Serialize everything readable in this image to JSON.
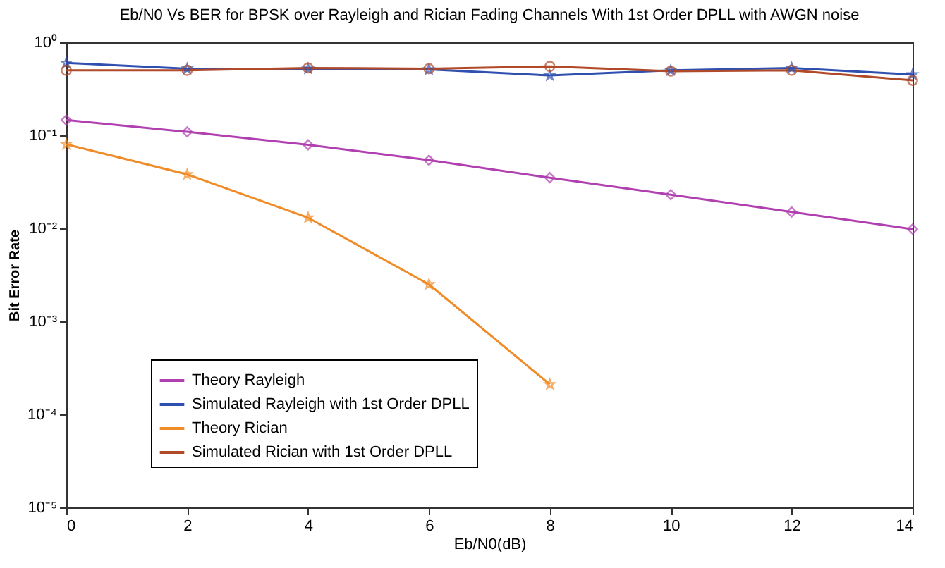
{
  "chart_data": {
    "type": "line",
    "title": "Eb/N0 Vs BER for BPSK over Rayleigh and Rician Fading Channels With 1st Order DPLL with AWGN noise",
    "xlabel": "Eb/N0(dB)",
    "ylabel": "Bit Error Rate",
    "x": [
      0,
      2,
      4,
      6,
      8,
      10,
      12,
      14
    ],
    "series": [
      {
        "name": "Theory Rayleigh",
        "color": "#b040b0",
        "marker": "diamond",
        "values": [
          0.146,
          0.109,
          0.079,
          0.054,
          0.035,
          0.023,
          0.015,
          0.0098
        ]
      },
      {
        "name": "Simulated Rayleigh with 1st Order DPLL",
        "color": "#3050b0",
        "marker": "star",
        "values": [
          0.6,
          0.52,
          0.52,
          0.51,
          0.44,
          0.5,
          0.53,
          0.45
        ]
      },
      {
        "name": "Theory Rician",
        "color": "#f08c28",
        "marker": "star",
        "values": [
          0.08,
          0.038,
          0.013,
          0.0025,
          0.00021,
          null,
          null,
          null
        ]
      },
      {
        "name": "Simulated Rician with 1st Order DPLL",
        "color": "#b04a28",
        "marker": "circle",
        "values": [
          0.5,
          0.5,
          0.53,
          0.52,
          0.55,
          0.49,
          0.5,
          0.39
        ]
      }
    ],
    "log": "y",
    "grid": false,
    "legend": "bottom left",
    "line_style": "solid",
    "xlim": [
      0,
      14
    ],
    "xticks": [
      0,
      2,
      4,
      6,
      8,
      10,
      12,
      14
    ],
    "ylim": [
      1e-05,
      1
    ],
    "yticks": [
      {
        "value": 1e-05,
        "label": "10⁻⁵"
      },
      {
        "value": 0.0001,
        "label": "10⁻⁴"
      },
      {
        "value": 0.001,
        "label": "10⁻³"
      },
      {
        "value": 0.01,
        "label": "10⁻²"
      },
      {
        "value": 0.1,
        "label": "10⁻¹"
      },
      {
        "value": 1,
        "label": "10⁰"
      }
    ]
  }
}
